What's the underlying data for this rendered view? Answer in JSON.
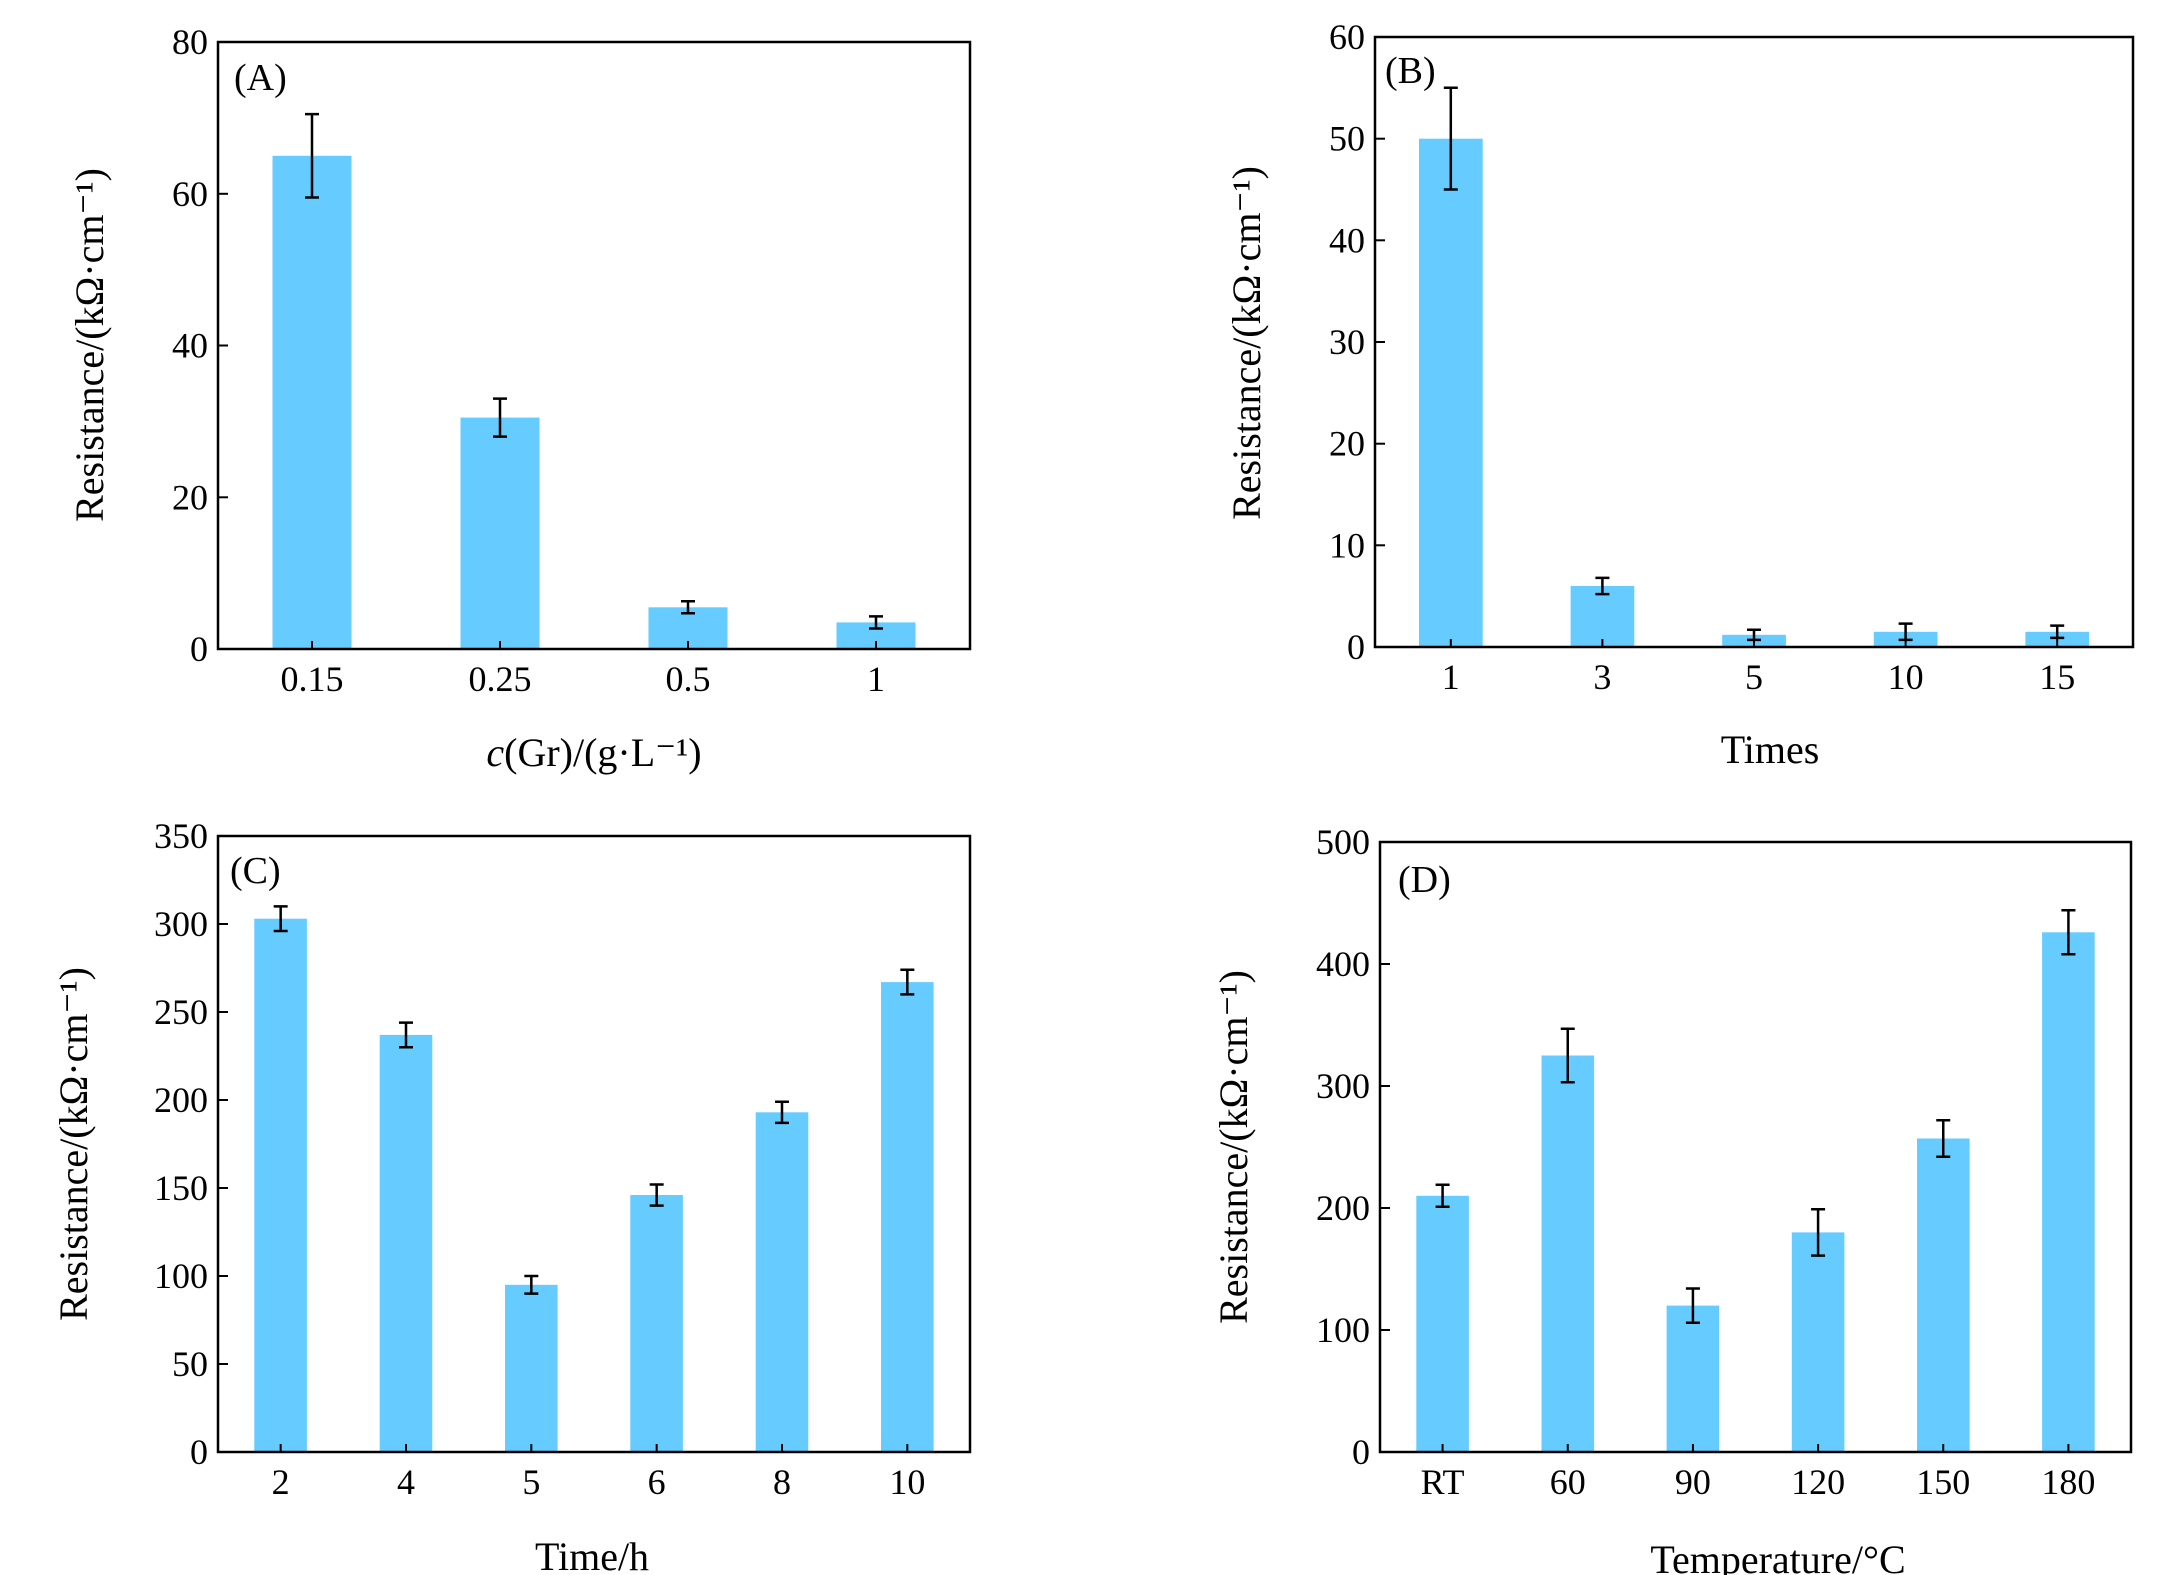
{
  "colors": {
    "bar": "#66CCFF",
    "axis": "#000000"
  },
  "chart_data": [
    {
      "type": "bar",
      "panel_label": "(A)",
      "categories": [
        "0.15",
        "0.25",
        "0.5",
        "1"
      ],
      "values": [
        65,
        30.5,
        5.5,
        3.5
      ],
      "errors": [
        5.5,
        2.5,
        0.8,
        0.8
      ],
      "title": "",
      "ylabel": "Resistance/(kΩ·cm⁻¹)",
      "xlabel_parts": {
        "italic": "c",
        "rest": "(Gr)/(g·L⁻¹)"
      },
      "ylim": [
        0,
        80
      ],
      "yticks": [
        0,
        20,
        40,
        60,
        80
      ],
      "ytick_labels": [
        "0",
        "20",
        "40",
        "60",
        "80"
      ],
      "grid": false,
      "legend": "none"
    },
    {
      "type": "bar",
      "panel_label": "(B)",
      "categories": [
        "1",
        "3",
        "5",
        "10",
        "15"
      ],
      "values": [
        50,
        6,
        1.2,
        1.5,
        1.5
      ],
      "errors": [
        5,
        0.8,
        0.5,
        0.8,
        0.6
      ],
      "title": "",
      "ylabel": "Resistance/(kΩ·cm⁻¹)",
      "xlabel": "Times",
      "ylim": [
        0,
        60
      ],
      "yticks": [
        0,
        10,
        20,
        30,
        40,
        50,
        60
      ],
      "ytick_labels": [
        "0",
        "10",
        "20",
        "30",
        "40",
        "50",
        "60"
      ],
      "grid": false,
      "legend": "none"
    },
    {
      "type": "bar",
      "panel_label": "(C)",
      "categories": [
        "2",
        "4",
        "5",
        "6",
        "8",
        "10"
      ],
      "values": [
        303,
        237,
        95,
        146,
        193,
        267
      ],
      "errors": [
        7,
        7,
        5,
        6,
        6,
        7
      ],
      "title": "",
      "ylabel": "Resistance/(kΩ·cm⁻¹)",
      "xlabel": "Time/h",
      "ylim": [
        0,
        350
      ],
      "yticks": [
        0,
        50,
        100,
        150,
        200,
        250,
        300,
        350
      ],
      "ytick_labels": [
        "0",
        "50",
        "100",
        "150",
        "200",
        "250",
        "300",
        "350"
      ],
      "grid": false,
      "legend": "none"
    },
    {
      "type": "bar",
      "panel_label": "(D)",
      "categories": [
        "RT",
        "60",
        "90",
        "120",
        "150",
        "180"
      ],
      "values": [
        210,
        325,
        120,
        180,
        257,
        426
      ],
      "errors": [
        9,
        22,
        14,
        19,
        15,
        18
      ],
      "title": "",
      "ylabel": "Resistance/(kΩ·cm⁻¹)",
      "xlabel": "Temperature/°C",
      "ylim": [
        0,
        500
      ],
      "yticks": [
        0,
        100,
        200,
        300,
        400,
        500
      ],
      "ytick_labels": [
        "0",
        "100",
        "200",
        "300",
        "400",
        "500"
      ],
      "grid": false,
      "legend": "none"
    }
  ]
}
